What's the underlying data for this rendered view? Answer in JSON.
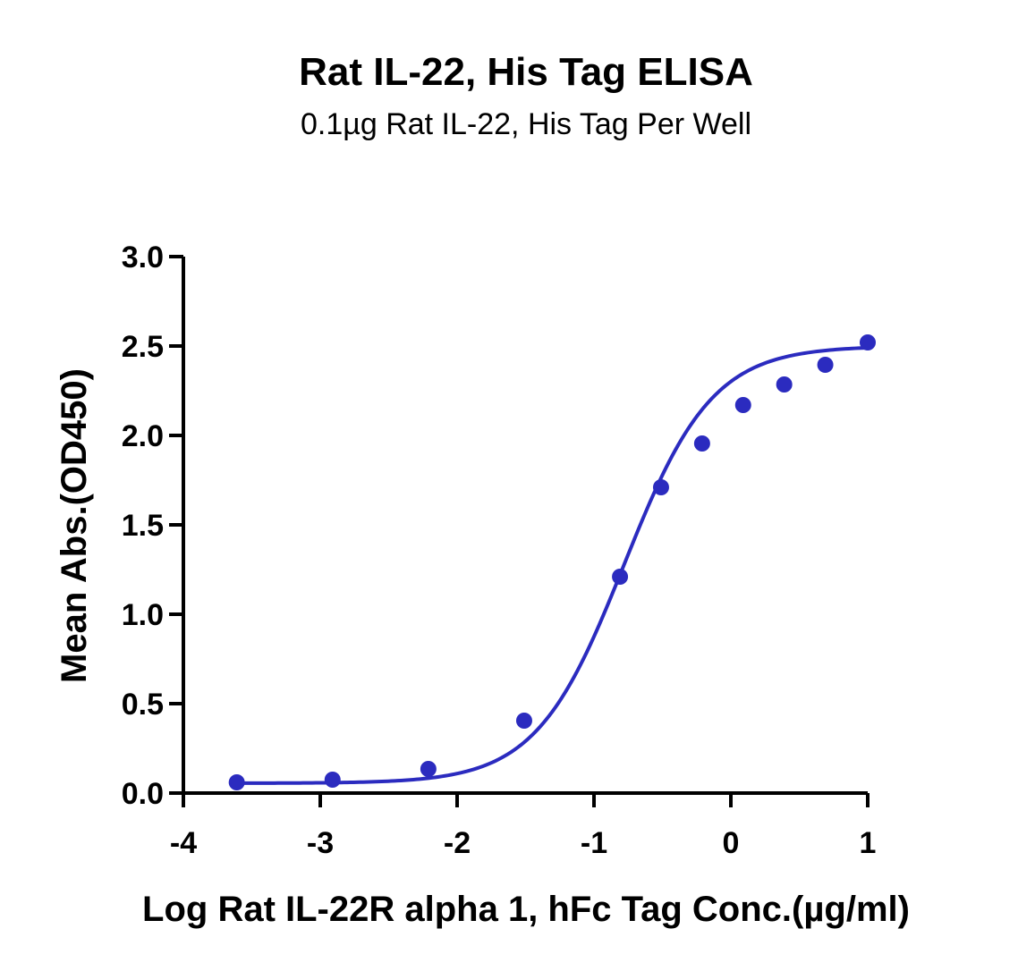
{
  "chart_data": {
    "type": "scatter",
    "title": "Rat IL-22, His Tag ELISA",
    "subtitle": "0.1µg Rat IL-22, His Tag Per Well",
    "xlabel": "Log Rat IL-22R alpha 1, hFc Tag Conc.(µg/ml)",
    "ylabel": "Mean Abs.(OD450)",
    "xlim": [
      -4,
      1
    ],
    "ylim": [
      0,
      3.0
    ],
    "xticks": [
      "-4",
      "-3",
      "-2",
      "-1",
      "0",
      "1"
    ],
    "yticks": [
      "0.0",
      "0.5",
      "1.0",
      "1.5",
      "2.0",
      "2.5",
      "3.0"
    ],
    "grid": false,
    "color": "#2b2bbf",
    "series": [
      {
        "x": [
          -3.61,
          -2.91,
          -2.21,
          -1.51,
          -0.81,
          -0.51,
          -0.21,
          0.09,
          0.39,
          0.69,
          1.0
        ],
        "y": [
          0.06,
          0.075,
          0.135,
          0.405,
          1.21,
          1.71,
          1.955,
          2.17,
          2.285,
          2.395,
          2.52
        ]
      }
    ],
    "fit_curve": {
      "model": "4PL",
      "bottom": 0.055,
      "top": 2.5,
      "logEC50": -0.78,
      "hill": 1.35
    }
  }
}
